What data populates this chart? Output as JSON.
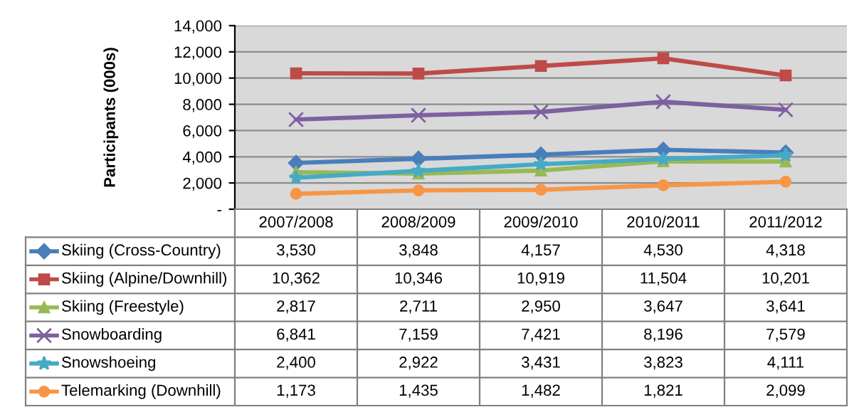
{
  "chart_data": {
    "type": "line",
    "ylabel": "Participants (000s)",
    "categories": [
      "2007/2008",
      "2008/2009",
      "2009/2010",
      "2010/2011",
      "2011/2012"
    ],
    "series": [
      {
        "name": "Skiing (Cross-Country)",
        "color": "#4a7ebb",
        "marker": "diamond",
        "values": [
          3530,
          3848,
          4157,
          4530,
          4318
        ],
        "value_labels": [
          "3,530",
          "3,848",
          "4,157",
          "4,530",
          "4,318"
        ]
      },
      {
        "name": "Skiing (Alpine/Downhill)",
        "color": "#be4b48",
        "marker": "square",
        "values": [
          10362,
          10346,
          10919,
          11504,
          10201
        ],
        "value_labels": [
          "10,362",
          "10,346",
          "10,919",
          "11,504",
          "10,201"
        ]
      },
      {
        "name": "Skiing (Freestyle)",
        "color": "#98b954",
        "marker": "triangle",
        "values": [
          2817,
          2711,
          2950,
          3647,
          3641
        ],
        "value_labels": [
          "2,817",
          "2,711",
          "2,950",
          "3,647",
          "3,641"
        ]
      },
      {
        "name": "Snowboarding",
        "color": "#7d60a0",
        "marker": "cross",
        "values": [
          6841,
          7159,
          7421,
          8196,
          7579
        ],
        "value_labels": [
          "6,841",
          "7,159",
          "7,421",
          "8,196",
          "7,579"
        ]
      },
      {
        "name": "Snowshoeing",
        "color": "#46aac5",
        "marker": "star",
        "values": [
          2400,
          2922,
          3431,
          3823,
          4111
        ],
        "value_labels": [
          "2,400",
          "2,922",
          "3,431",
          "3,823",
          "4,111"
        ]
      },
      {
        "name": "Telemarking (Downhill)",
        "color": "#f79646",
        "marker": "circle",
        "values": [
          1173,
          1435,
          1482,
          1821,
          2099
        ],
        "value_labels": [
          "1,173",
          "1,435",
          "1,482",
          "1,821",
          "2,099"
        ]
      }
    ],
    "ylim": [
      0,
      14000
    ],
    "yticks": [
      {
        "value": 0,
        "label": "-"
      },
      {
        "value": 2000,
        "label": "2,000"
      },
      {
        "value": 4000,
        "label": "4,000"
      },
      {
        "value": 6000,
        "label": "6,000"
      },
      {
        "value": 8000,
        "label": "8,000"
      },
      {
        "value": 10000,
        "label": "10,000"
      },
      {
        "value": 12000,
        "label": "12,000"
      },
      {
        "value": 14000,
        "label": "14,000"
      }
    ],
    "grid": "y",
    "line_style": "solid",
    "legend": "bottom"
  }
}
